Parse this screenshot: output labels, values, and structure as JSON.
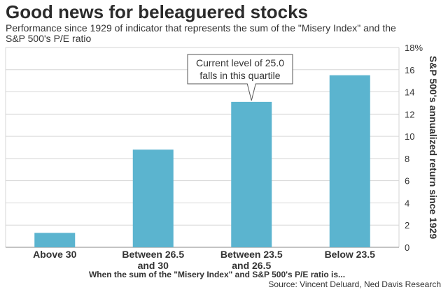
{
  "title": "Good news for beleaguered stocks",
  "subtitle": "Performance since 1929 of indicator that represents the sum of the \"Misery Index\" and the S&P 500's P/E ratio",
  "source": "Source: Vincent Deluard, Ned Davis Research",
  "chart_data": {
    "type": "bar",
    "categories": [
      [
        "Above 30"
      ],
      [
        "Between 26.5",
        "and 30"
      ],
      [
        "Between 23.5",
        "and 26.5"
      ],
      [
        "Below 23.5"
      ]
    ],
    "values": [
      1.3,
      8.8,
      13.1,
      15.5
    ],
    "xlabel": "When the sum of the \"Misery Index\" and S&P 500's P/E ratio is...",
    "ylabel": "S&P 500's annualized return since 1929",
    "ylim": [
      0,
      18
    ],
    "yticks": [
      "0",
      "2",
      "4",
      "6",
      "8",
      "10",
      "12",
      "14",
      "16",
      "18%"
    ],
    "grid": true,
    "y_axis_side": "right",
    "bar_color": "#5bb4cf",
    "annotation": {
      "lines": [
        "Current level of 25.0",
        "falls in this quartile"
      ],
      "target_category_index": 2
    }
  }
}
